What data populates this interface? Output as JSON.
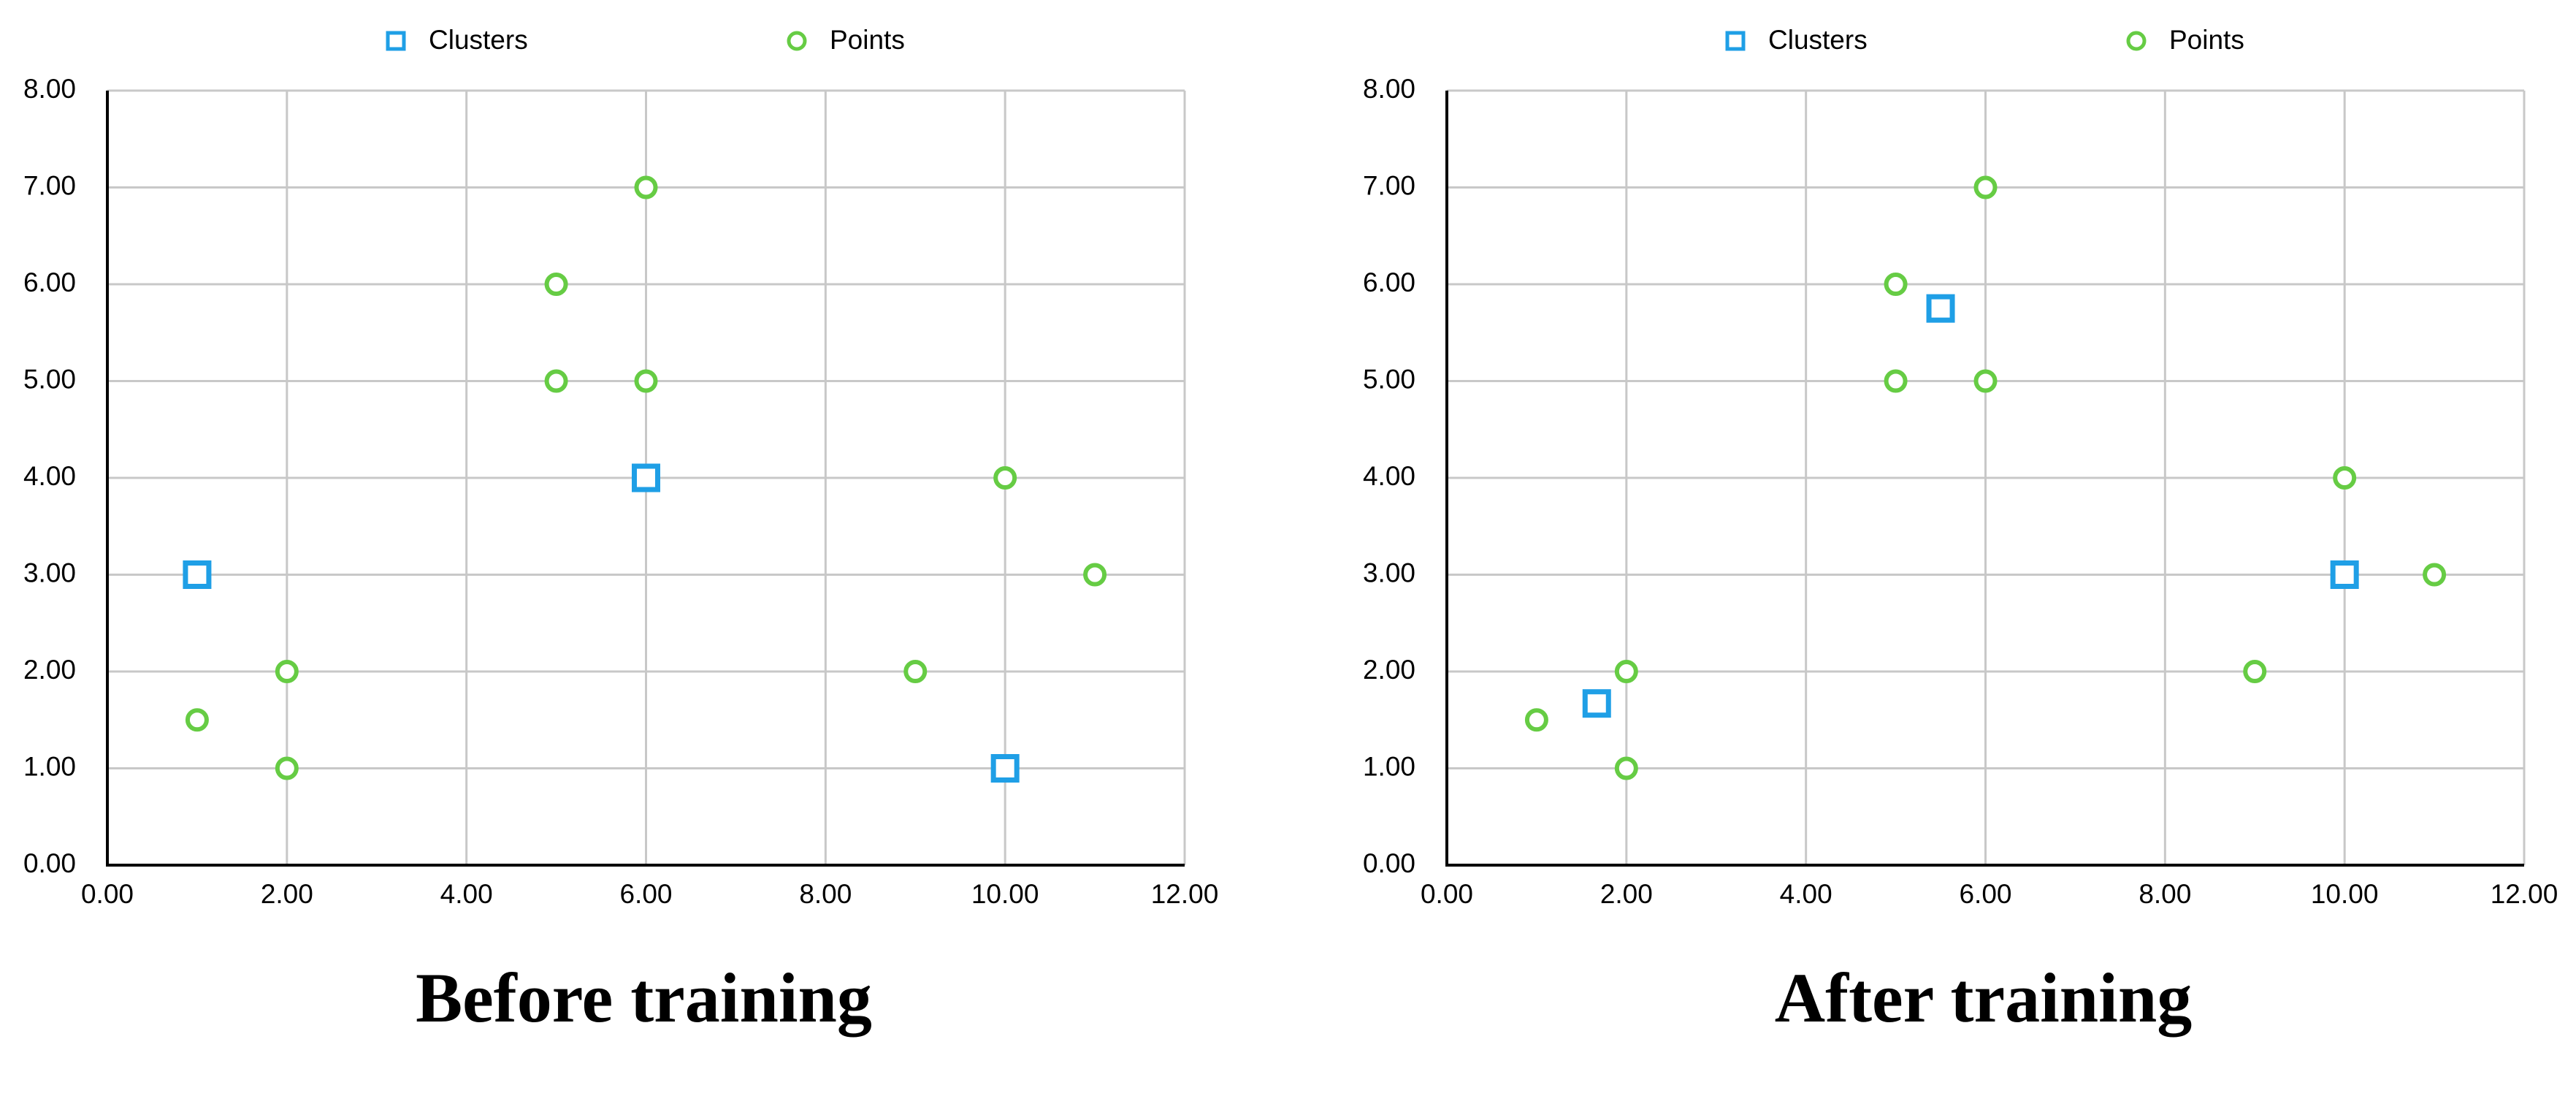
{
  "chart_data": [
    {
      "type": "scatter",
      "title": "Before training",
      "legend": "top",
      "grid": true,
      "xlim": [
        0,
        12
      ],
      "ylim": [
        0,
        8
      ],
      "xticks": [
        {
          "value": 0,
          "label": "0.00"
        },
        {
          "value": 2,
          "label": "2.00"
        },
        {
          "value": 4,
          "label": "4.00"
        },
        {
          "value": 6,
          "label": "6.00"
        },
        {
          "value": 8,
          "label": "8.00"
        },
        {
          "value": 10,
          "label": "10.00"
        },
        {
          "value": 12,
          "label": "12.00"
        }
      ],
      "yticks": [
        {
          "value": 0,
          "label": "0.00"
        },
        {
          "value": 1,
          "label": "1.00"
        },
        {
          "value": 2,
          "label": "2.00"
        },
        {
          "value": 3,
          "label": "3.00"
        },
        {
          "value": 4,
          "label": "4.00"
        },
        {
          "value": 5,
          "label": "5.00"
        },
        {
          "value": 6,
          "label": "6.00"
        },
        {
          "value": 7,
          "label": "7.00"
        },
        {
          "value": 8,
          "label": "8.00"
        }
      ],
      "series": [
        {
          "name": "Clusters",
          "color": "#1f9fe6",
          "marker": "square",
          "x": [
            1,
            6,
            10
          ],
          "values": [
            3,
            4,
            1
          ]
        },
        {
          "name": "Points",
          "color": "#66cc44",
          "marker": "circle",
          "x": [
            6,
            5,
            5,
            6,
            10,
            11,
            2,
            9,
            1,
            2
          ],
          "values": [
            7,
            6,
            5,
            5,
            4,
            3,
            2,
            2,
            1.5,
            1
          ]
        }
      ]
    },
    {
      "type": "scatter",
      "title": "After training",
      "legend": "top",
      "grid": true,
      "xlim": [
        0,
        12
      ],
      "ylim": [
        0,
        8
      ],
      "xticks": [
        {
          "value": 0,
          "label": "0.00"
        },
        {
          "value": 2,
          "label": "2.00"
        },
        {
          "value": 4,
          "label": "4.00"
        },
        {
          "value": 6,
          "label": "6.00"
        },
        {
          "value": 8,
          "label": "8.00"
        },
        {
          "value": 10,
          "label": "10.00"
        },
        {
          "value": 12,
          "label": "12.00"
        }
      ],
      "yticks": [
        {
          "value": 0,
          "label": "0.00"
        },
        {
          "value": 1,
          "label": "1.00"
        },
        {
          "value": 2,
          "label": "2.00"
        },
        {
          "value": 3,
          "label": "3.00"
        },
        {
          "value": 4,
          "label": "4.00"
        },
        {
          "value": 5,
          "label": "5.00"
        },
        {
          "value": 6,
          "label": "6.00"
        },
        {
          "value": 7,
          "label": "7.00"
        },
        {
          "value": 8,
          "label": "8.00"
        }
      ],
      "series": [
        {
          "name": "Clusters",
          "color": "#1f9fe6",
          "marker": "square",
          "x": [
            5.5,
            10,
            1.67
          ],
          "values": [
            5.75,
            3,
            1.67
          ]
        },
        {
          "name": "Points",
          "color": "#66cc44",
          "marker": "circle",
          "x": [
            6,
            5,
            5,
            6,
            10,
            11,
            2,
            9,
            1,
            2
          ],
          "values": [
            7,
            6,
            5,
            5,
            4,
            3,
            2,
            2,
            1.5,
            1
          ]
        }
      ]
    }
  ]
}
